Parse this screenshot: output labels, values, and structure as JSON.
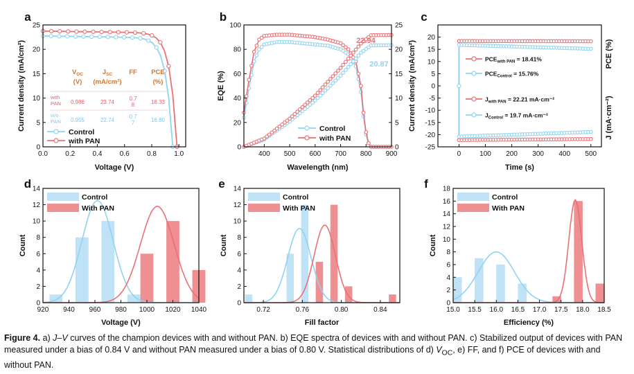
{
  "colors": {
    "control": "#8fd3f2",
    "pan": "#ec6f73",
    "control_bar": "#bfe2f6",
    "pan_bar": "#ee8f91",
    "table_red": "#e4606a",
    "table_blue": "#7fc8ec",
    "orange": "#d5762e"
  },
  "chart_data": [
    {
      "panel": "a",
      "type": "line",
      "xlabel": "Voltage (V)",
      "ylabel": "Current density (mA/cm²)",
      "xlim": [
        0,
        1.05
      ],
      "ylim": [
        0,
        25
      ],
      "xticks": [
        "0.0",
        "0.2",
        "0.4",
        "0.6",
        "0.8",
        "1.0"
      ],
      "yticks": [
        "0",
        "5",
        "10",
        "15",
        "20",
        "25"
      ],
      "legend": [
        "Control",
        "with PAN"
      ],
      "series": [
        {
          "name": "Control",
          "voc": 0.955,
          "jsc": 22.74
        },
        {
          "name": "with PAN",
          "voc": 0.986,
          "jsc": 23.74
        }
      ],
      "table": {
        "headers": [
          "V_OC (V)",
          "J_SC (mA/cm²)",
          "FF",
          "PCE (%)"
        ],
        "rows": [
          {
            "label": "with PAN",
            "voc": "0.986",
            "jsc": "23.74",
            "ff": "0.7 8",
            "pce": "18.33"
          },
          {
            "label": "w/o PAN",
            "voc": "0.955",
            "jsc": "22.74",
            "ff": "0.7 7",
            "pce": "16.80"
          }
        ]
      }
    },
    {
      "panel": "b",
      "type": "line",
      "xlabel": "Wavelength (nm)",
      "ylabel": "EQE (%)",
      "ylabel2": "Current density (mA/cm²)",
      "xlim": [
        320,
        900
      ],
      "ylim": [
        0,
        100
      ],
      "ylim2": [
        0,
        25
      ],
      "xticks": [
        "400",
        "500",
        "600",
        "700",
        "800",
        "900"
      ],
      "yticks": [
        "0",
        "20",
        "40",
        "60",
        "80",
        "100"
      ],
      "yticks2": [
        "0",
        "5",
        "10",
        "15",
        "20",
        "25"
      ],
      "legend": [
        "Control",
        "with PAN"
      ],
      "integrated_labels": [
        "22.94",
        "20.87"
      ],
      "series": [
        {
          "name": "Control EQE",
          "x": [
            320,
            340,
            360,
            380,
            400,
            450,
            500,
            550,
            600,
            650,
            700,
            730,
            760,
            780,
            790,
            800,
            810,
            820
          ],
          "y": [
            24,
            48,
            70,
            80,
            84,
            86,
            86,
            85,
            84,
            83,
            80,
            76,
            66,
            45,
            25,
            10,
            3,
            0
          ]
        },
        {
          "name": "with PAN EQE",
          "x": [
            320,
            340,
            360,
            380,
            400,
            450,
            500,
            550,
            600,
            650,
            700,
            730,
            760,
            780,
            790,
            800,
            810,
            820
          ],
          "y": [
            28,
            55,
            78,
            88,
            91,
            92,
            92,
            91,
            90,
            88,
            85,
            80,
            70,
            50,
            28,
            12,
            3,
            0
          ]
        },
        {
          "name": "Control integrated Jsc",
          "x": [
            320,
            400,
            500,
            600,
            700,
            780,
            820,
            900
          ],
          "y": [
            0,
            1.5,
            5.2,
            9.5,
            14.6,
            19.3,
            20.8,
            20.87
          ]
        },
        {
          "name": "with PAN integrated Jsc",
          "x": [
            320,
            400,
            500,
            600,
            700,
            780,
            820,
            900
          ],
          "y": [
            0,
            1.7,
            5.8,
            10.5,
            16.2,
            21.2,
            22.9,
            22.94
          ]
        }
      ]
    },
    {
      "panel": "c",
      "type": "line",
      "xlabel": "Time (s)",
      "ylabel": "PCE (%)",
      "ylabel2": "J (mA·cm⁻²)",
      "xlim": [
        -80,
        540
      ],
      "ylim": [
        -25,
        25
      ],
      "xticks": [
        "0",
        "100",
        "200",
        "300",
        "400",
        "500"
      ],
      "yticks": [
        "20",
        "15",
        "10",
        "5",
        "0",
        "-5",
        "-10",
        "-15",
        "-20",
        "-25"
      ],
      "legend": [
        {
          "main": "PCE",
          "sub": "with PAN",
          "rest": " = 18.41%"
        },
        {
          "main": "PCE",
          "sub": "Control",
          "rest": " = 15.76%"
        },
        {
          "main": "J",
          "sub": "with PAN",
          "rest": " = 22.21 mA·cm⁻²"
        },
        {
          "main": "J",
          "sub": "Control",
          "rest": " = 19.7 mA·cm⁻²"
        }
      ],
      "series": [
        {
          "name": "PCE with PAN",
          "x": [
            0,
            500
          ],
          "y": [
            18.41,
            18.3
          ]
        },
        {
          "name": "PCE Control",
          "x": [
            0,
            500
          ],
          "y": [
            16.8,
            15.2
          ]
        },
        {
          "name": "J with PAN",
          "x": [
            0,
            500
          ],
          "y": [
            -22.21,
            -21.8
          ]
        },
        {
          "name": "J Control",
          "x": [
            0,
            500
          ],
          "y": [
            -20.8,
            -18.9
          ]
        }
      ]
    },
    {
      "panel": "d",
      "type": "bar",
      "xlabel": "Voltage (V)",
      "ylabel": "Count",
      "xlim": [
        920,
        1040
      ],
      "ylim": [
        0,
        14
      ],
      "xticks": [
        "920",
        "940",
        "960",
        "980",
        "1000",
        "1020",
        "1040"
      ],
      "yticks": [
        "0",
        "2",
        "4",
        "6",
        "8",
        "10",
        "12",
        "14"
      ],
      "legend": [
        "Control",
        "With PAN"
      ],
      "series": [
        {
          "name": "Control",
          "x": [
            930,
            950,
            970,
            990
          ],
          "values": [
            1,
            8,
            10,
            1
          ],
          "fit_mean": 962,
          "fit_sd": 12,
          "fit_peak": 12.5
        },
        {
          "name": "With PAN",
          "x": [
            1000,
            1020,
            1040
          ],
          "values": [
            6,
            10,
            4
          ],
          "fit_mean": 1008,
          "fit_sd": 13,
          "fit_peak": 11.8
        }
      ],
      "bar_width": 10
    },
    {
      "panel": "e",
      "type": "bar",
      "xlabel": "Fill factor",
      "ylabel": "Count",
      "xlim": [
        0.7,
        0.86
      ],
      "ylim": [
        0,
        14
      ],
      "xticks": [
        "0.72",
        "0.76",
        "0.80",
        "0.84"
      ],
      "yticks": [
        "0",
        "2",
        "4",
        "6",
        "8",
        "10",
        "12",
        "14"
      ],
      "legend": [
        "Control",
        "With PAN"
      ],
      "series": [
        {
          "name": "Control",
          "x": [
            0.705,
            0.7475,
            0.7625,
            0.7775,
            0.7925
          ],
          "values": [
            1,
            6,
            12,
            5,
            1
          ],
          "fit_mean": 0.757,
          "fit_sd": 0.012,
          "fit_peak": 9.1
        },
        {
          "name": "With PAN",
          "x": [
            0.7775,
            0.7925,
            0.8075,
            0.8525
          ],
          "values": [
            5,
            12,
            2,
            1
          ],
          "fit_mean": 0.783,
          "fit_sd": 0.011,
          "fit_peak": 9.5
        }
      ],
      "bar_width": 0.0075
    },
    {
      "panel": "f",
      "type": "bar",
      "xlabel": "Efficiency (%)",
      "ylabel": "Count",
      "xlim": [
        15.0,
        18.5
      ],
      "ylim": [
        0,
        18
      ],
      "xticks": [
        "15.0",
        "15.5",
        "16.0",
        "16.5",
        "17.0",
        "17.5",
        "18.0",
        "18.5"
      ],
      "yticks": [
        "0",
        "2",
        "4",
        "6",
        "8",
        "10",
        "12",
        "14",
        "16",
        "18"
      ],
      "legend": [
        "Control",
        "With PAN"
      ],
      "series": [
        {
          "name": "Control",
          "x": [
            15.1,
            15.6,
            16.1,
            16.6
          ],
          "values": [
            4,
            7,
            6,
            3
          ],
          "fit_mean": 16.0,
          "fit_sd": 0.42,
          "fit_peak": 8.0
        },
        {
          "name": "With PAN",
          "x": [
            17.4,
            17.9,
            18.4
          ],
          "values": [
            1,
            16,
            3
          ],
          "fit_mean": 17.83,
          "fit_sd": 0.15,
          "fit_peak": 16.2
        }
      ],
      "bar_width": 0.2
    }
  ],
  "caption": {
    "label": "Figure 4.",
    "p1": "a) ",
    "jv": "J–V",
    "p2": " curves of the champion devices with and without PAN. b) EQE spectra of devices with and without PAN. c) Stabilized output of devices with PAN measured under a bias of 0.84 V and without PAN measured under a bias of 0.80 V. Statistical distributions of d) ",
    "voc_main": "V",
    "voc_sub": "OC",
    "p3": ", e) FF, and f) PCE of devices with and without PAN."
  }
}
